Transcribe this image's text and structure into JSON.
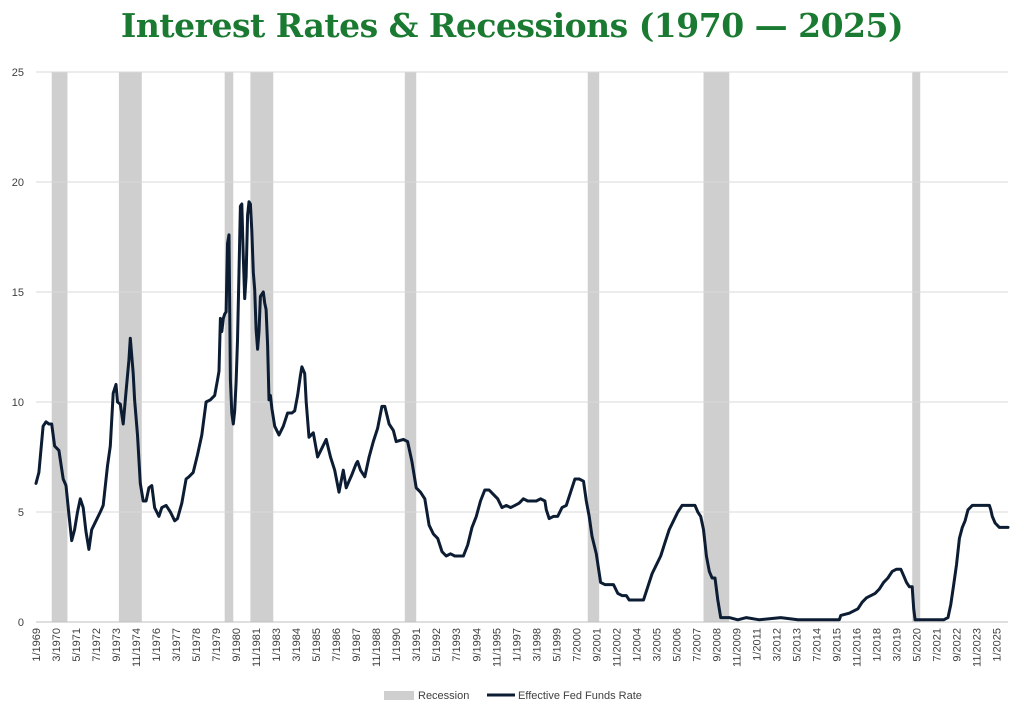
{
  "chart_data": {
    "type": "line",
    "title": "Interest Rates & Recessions (1970 — 2025)",
    "xlabel": "",
    "ylabel": "",
    "ylim": [
      0,
      25
    ],
    "y_ticks": [
      "0",
      "5",
      "10",
      "15",
      "20",
      "25"
    ],
    "x_range": [
      "1969-01",
      "2025-09"
    ],
    "x_ticks": [
      "1/1969",
      "5/1971",
      "9/1973",
      "1/1976",
      "5/1978",
      "9/1980",
      "1/1983",
      "5/1985",
      "9/1987",
      "1/1990",
      "5/1992",
      "9/1994",
      "1/1997",
      "5/1999",
      "9/2001",
      "1/2004",
      "5/2006",
      "9/2008",
      "1/2011",
      "5/2013",
      "9/2015",
      "1/2018",
      "5/2020",
      "9/2022",
      "1/2025"
    ],
    "x_ticks_alt": [
      "3/1970",
      "7/1972",
      "11/1974",
      "3/1977",
      "7/1979",
      "11/1981",
      "3/1984",
      "7/1986",
      "11/1988",
      "3/1991",
      "7/1993",
      "11/1995",
      "3/1998",
      "7/2000",
      "11/2002",
      "3/2005",
      "7/2007",
      "11/2009",
      "3/2012",
      "7/2014",
      "11/2016",
      "3/2019",
      "7/2021",
      "11/2023"
    ],
    "grid": "horizontal",
    "legend_position": "bottom",
    "colors": {
      "recession": "#cfcfcf",
      "line": "#0c1c33",
      "grid": "#d9d9d9",
      "title": "#1a7a32"
    },
    "series": [
      {
        "name": "Recession",
        "kind": "band",
        "periods": [
          [
            "1969-12",
            "1970-11"
          ],
          [
            "1973-11",
            "1975-03"
          ],
          [
            "1980-01",
            "1980-07"
          ],
          [
            "1981-07",
            "1982-11"
          ],
          [
            "1990-07",
            "1991-03"
          ],
          [
            "2001-03",
            "2001-11"
          ],
          [
            "2007-12",
            "2009-06"
          ],
          [
            "2020-02",
            "2020-04"
          ]
        ]
      },
      {
        "name": "Effective Fed Funds Rate",
        "kind": "line",
        "points": [
          [
            "1969-01",
            6.3
          ],
          [
            "1969-03",
            6.8
          ],
          [
            "1969-06",
            8.9
          ],
          [
            "1969-08",
            9.1
          ],
          [
            "1969-10",
            9.0
          ],
          [
            "1969-12",
            9.0
          ],
          [
            "1970-02",
            8.0
          ],
          [
            "1970-05",
            7.8
          ],
          [
            "1970-08",
            6.5
          ],
          [
            "1970-10",
            6.2
          ],
          [
            "1970-12",
            4.9
          ],
          [
            "1971-02",
            3.7
          ],
          [
            "1971-04",
            4.2
          ],
          [
            "1971-06",
            5.0
          ],
          [
            "1971-08",
            5.6
          ],
          [
            "1971-10",
            5.2
          ],
          [
            "1971-12",
            4.1
          ],
          [
            "1972-02",
            3.3
          ],
          [
            "1972-04",
            4.2
          ],
          [
            "1972-07",
            4.6
          ],
          [
            "1972-10",
            5.0
          ],
          [
            "1972-12",
            5.3
          ],
          [
            "1973-03",
            7.1
          ],
          [
            "1973-05",
            8.0
          ],
          [
            "1973-07",
            10.4
          ],
          [
            "1973-09",
            10.8
          ],
          [
            "1973-10",
            10.0
          ],
          [
            "1973-12",
            9.9
          ],
          [
            "1974-02",
            9.0
          ],
          [
            "1974-04",
            10.5
          ],
          [
            "1974-06",
            11.9
          ],
          [
            "1974-07",
            12.9
          ],
          [
            "1974-09",
            11.3
          ],
          [
            "1974-10",
            10.1
          ],
          [
            "1974-12",
            8.5
          ],
          [
            "1975-02",
            6.3
          ],
          [
            "1975-04",
            5.5
          ],
          [
            "1975-06",
            5.5
          ],
          [
            "1975-08",
            6.1
          ],
          [
            "1975-10",
            6.2
          ],
          [
            "1975-12",
            5.2
          ],
          [
            "1976-03",
            4.8
          ],
          [
            "1976-05",
            5.2
          ],
          [
            "1976-08",
            5.3
          ],
          [
            "1976-11",
            5.0
          ],
          [
            "1977-02",
            4.6
          ],
          [
            "1977-04",
            4.7
          ],
          [
            "1977-07",
            5.4
          ],
          [
            "1977-10",
            6.5
          ],
          [
            "1977-12",
            6.6
          ],
          [
            "1978-03",
            6.8
          ],
          [
            "1978-06",
            7.6
          ],
          [
            "1978-09",
            8.5
          ],
          [
            "1978-12",
            10.0
          ],
          [
            "1979-03",
            10.1
          ],
          [
            "1979-06",
            10.3
          ],
          [
            "1979-08",
            11.0
          ],
          [
            "1979-09",
            11.4
          ],
          [
            "1979-10",
            13.8
          ],
          [
            "1979-11",
            13.2
          ],
          [
            "1979-12",
            13.8
          ],
          [
            "1980-01",
            14.0
          ],
          [
            "1980-02",
            14.1
          ],
          [
            "1980-03",
            17.2
          ],
          [
            "1980-04",
            17.6
          ],
          [
            "1980-05",
            11.0
          ],
          [
            "1980-06",
            9.5
          ],
          [
            "1980-07",
            9.0
          ],
          [
            "1980-08",
            9.6
          ],
          [
            "1980-09",
            10.9
          ],
          [
            "1980-10",
            12.8
          ],
          [
            "1980-11",
            15.9
          ],
          [
            "1980-12",
            18.9
          ],
          [
            "1981-01",
            19.0
          ],
          [
            "1981-02",
            16.6
          ],
          [
            "1981-03",
            14.7
          ],
          [
            "1981-04",
            15.7
          ],
          [
            "1981-05",
            18.5
          ],
          [
            "1981-06",
            19.1
          ],
          [
            "1981-07",
            19.0
          ],
          [
            "1981-08",
            17.8
          ],
          [
            "1981-09",
            15.9
          ],
          [
            "1981-10",
            15.1
          ],
          [
            "1981-11",
            13.3
          ],
          [
            "1981-12",
            12.4
          ],
          [
            "1982-01",
            13.2
          ],
          [
            "1982-02",
            14.8
          ],
          [
            "1982-04",
            15.0
          ],
          [
            "1982-05",
            14.5
          ],
          [
            "1982-06",
            14.2
          ],
          [
            "1982-07",
            12.6
          ],
          [
            "1982-08",
            10.1
          ],
          [
            "1982-09",
            10.3
          ],
          [
            "1982-10",
            9.7
          ],
          [
            "1982-12",
            8.9
          ],
          [
            "1983-03",
            8.5
          ],
          [
            "1983-06",
            8.9
          ],
          [
            "1983-09",
            9.5
          ],
          [
            "1983-12",
            9.5
          ],
          [
            "1984-02",
            9.6
          ],
          [
            "1984-04",
            10.3
          ],
          [
            "1984-06",
            11.2
          ],
          [
            "1984-07",
            11.6
          ],
          [
            "1984-09",
            11.3
          ],
          [
            "1984-10",
            10.0
          ],
          [
            "1984-12",
            8.4
          ],
          [
            "1985-03",
            8.6
          ],
          [
            "1985-06",
            7.5
          ],
          [
            "1985-09",
            7.9
          ],
          [
            "1985-12",
            8.3
          ],
          [
            "1986-03",
            7.5
          ],
          [
            "1986-06",
            6.9
          ],
          [
            "1986-09",
            5.9
          ],
          [
            "1986-12",
            6.9
          ],
          [
            "1987-02",
            6.1
          ],
          [
            "1987-04",
            6.4
          ],
          [
            "1987-06",
            6.7
          ],
          [
            "1987-09",
            7.2
          ],
          [
            "1987-10",
            7.3
          ],
          [
            "1987-12",
            6.9
          ],
          [
            "1988-03",
            6.6
          ],
          [
            "1988-06",
            7.5
          ],
          [
            "1988-09",
            8.2
          ],
          [
            "1988-12",
            8.8
          ],
          [
            "1989-03",
            9.8
          ],
          [
            "1989-05",
            9.8
          ],
          [
            "1989-08",
            9.0
          ],
          [
            "1989-11",
            8.7
          ],
          [
            "1990-01",
            8.2
          ],
          [
            "1990-06",
            8.3
          ],
          [
            "1990-09",
            8.2
          ],
          [
            "1990-12",
            7.3
          ],
          [
            "1991-03",
            6.1
          ],
          [
            "1991-06",
            5.9
          ],
          [
            "1991-09",
            5.6
          ],
          [
            "1991-12",
            4.4
          ],
          [
            "1992-03",
            4.0
          ],
          [
            "1992-06",
            3.8
          ],
          [
            "1992-09",
            3.2
          ],
          [
            "1992-12",
            3.0
          ],
          [
            "1993-03",
            3.1
          ],
          [
            "1993-06",
            3.0
          ],
          [
            "1993-09",
            3.0
          ],
          [
            "1993-12",
            3.0
          ],
          [
            "1994-03",
            3.5
          ],
          [
            "1994-06",
            4.3
          ],
          [
            "1994-09",
            4.8
          ],
          [
            "1994-12",
            5.5
          ],
          [
            "1995-03",
            6.0
          ],
          [
            "1995-06",
            6.0
          ],
          [
            "1995-09",
            5.8
          ],
          [
            "1995-12",
            5.6
          ],
          [
            "1996-03",
            5.2
          ],
          [
            "1996-06",
            5.3
          ],
          [
            "1996-09",
            5.2
          ],
          [
            "1996-12",
            5.3
          ],
          [
            "1997-03",
            5.4
          ],
          [
            "1997-06",
            5.6
          ],
          [
            "1997-09",
            5.5
          ],
          [
            "1997-12",
            5.5
          ],
          [
            "1998-03",
            5.5
          ],
          [
            "1998-06",
            5.6
          ],
          [
            "1998-09",
            5.5
          ],
          [
            "1998-10",
            5.1
          ],
          [
            "1998-12",
            4.7
          ],
          [
            "1999-03",
            4.8
          ],
          [
            "1999-06",
            4.8
          ],
          [
            "1999-09",
            5.2
          ],
          [
            "1999-12",
            5.3
          ],
          [
            "2000-03",
            5.9
          ],
          [
            "2000-06",
            6.5
          ],
          [
            "2000-09",
            6.5
          ],
          [
            "2000-12",
            6.4
          ],
          [
            "2001-02",
            5.5
          ],
          [
            "2001-04",
            4.8
          ],
          [
            "2001-06",
            3.9
          ],
          [
            "2001-09",
            3.1
          ],
          [
            "2001-12",
            1.8
          ],
          [
            "2002-03",
            1.7
          ],
          [
            "2002-06",
            1.7
          ],
          [
            "2002-09",
            1.7
          ],
          [
            "2002-12",
            1.3
          ],
          [
            "2003-03",
            1.2
          ],
          [
            "2003-06",
            1.2
          ],
          [
            "2003-08",
            1.0
          ],
          [
            "2003-12",
            1.0
          ],
          [
            "2004-03",
            1.0
          ],
          [
            "2004-06",
            1.0
          ],
          [
            "2004-09",
            1.6
          ],
          [
            "2004-12",
            2.2
          ],
          [
            "2005-03",
            2.6
          ],
          [
            "2005-06",
            3.0
          ],
          [
            "2005-09",
            3.6
          ],
          [
            "2005-12",
            4.2
          ],
          [
            "2006-03",
            4.6
          ],
          [
            "2006-06",
            5.0
          ],
          [
            "2006-09",
            5.3
          ],
          [
            "2006-12",
            5.3
          ],
          [
            "2007-03",
            5.3
          ],
          [
            "2007-06",
            5.3
          ],
          [
            "2007-08",
            5.0
          ],
          [
            "2007-10",
            4.8
          ],
          [
            "2007-12",
            4.2
          ],
          [
            "2008-02",
            3.0
          ],
          [
            "2008-04",
            2.3
          ],
          [
            "2008-06",
            2.0
          ],
          [
            "2008-08",
            2.0
          ],
          [
            "2008-10",
            1.0
          ],
          [
            "2008-12",
            0.2
          ],
          [
            "2009-03",
            0.2
          ],
          [
            "2009-06",
            0.2
          ],
          [
            "2009-12",
            0.1
          ],
          [
            "2010-06",
            0.2
          ],
          [
            "2011-03",
            0.1
          ],
          [
            "2012-06",
            0.2
          ],
          [
            "2013-06",
            0.1
          ],
          [
            "2014-12",
            0.1
          ],
          [
            "2015-11",
            0.1
          ],
          [
            "2015-12",
            0.3
          ],
          [
            "2016-06",
            0.4
          ],
          [
            "2016-12",
            0.6
          ],
          [
            "2017-03",
            0.9
          ],
          [
            "2017-06",
            1.1
          ],
          [
            "2017-12",
            1.3
          ],
          [
            "2018-03",
            1.5
          ],
          [
            "2018-06",
            1.8
          ],
          [
            "2018-09",
            2.0
          ],
          [
            "2018-12",
            2.3
          ],
          [
            "2019-03",
            2.4
          ],
          [
            "2019-06",
            2.4
          ],
          [
            "2019-08",
            2.1
          ],
          [
            "2019-10",
            1.8
          ],
          [
            "2019-12",
            1.6
          ],
          [
            "2020-02",
            1.6
          ],
          [
            "2020-03",
            0.6
          ],
          [
            "2020-04",
            0.1
          ],
          [
            "2020-12",
            0.1
          ],
          [
            "2021-06",
            0.1
          ],
          [
            "2021-12",
            0.1
          ],
          [
            "2022-03",
            0.2
          ],
          [
            "2022-05",
            0.8
          ],
          [
            "2022-07",
            1.7
          ],
          [
            "2022-09",
            2.6
          ],
          [
            "2022-11",
            3.8
          ],
          [
            "2023-01",
            4.3
          ],
          [
            "2023-03",
            4.6
          ],
          [
            "2023-05",
            5.1
          ],
          [
            "2023-08",
            5.3
          ],
          [
            "2023-12",
            5.3
          ],
          [
            "2024-03",
            5.3
          ],
          [
            "2024-06",
            5.3
          ],
          [
            "2024-08",
            5.3
          ],
          [
            "2024-09",
            5.1
          ],
          [
            "2024-10",
            4.8
          ],
          [
            "2024-12",
            4.5
          ],
          [
            "2025-03",
            4.3
          ],
          [
            "2025-06",
            4.3
          ],
          [
            "2025-09",
            4.3
          ]
        ]
      }
    ]
  }
}
